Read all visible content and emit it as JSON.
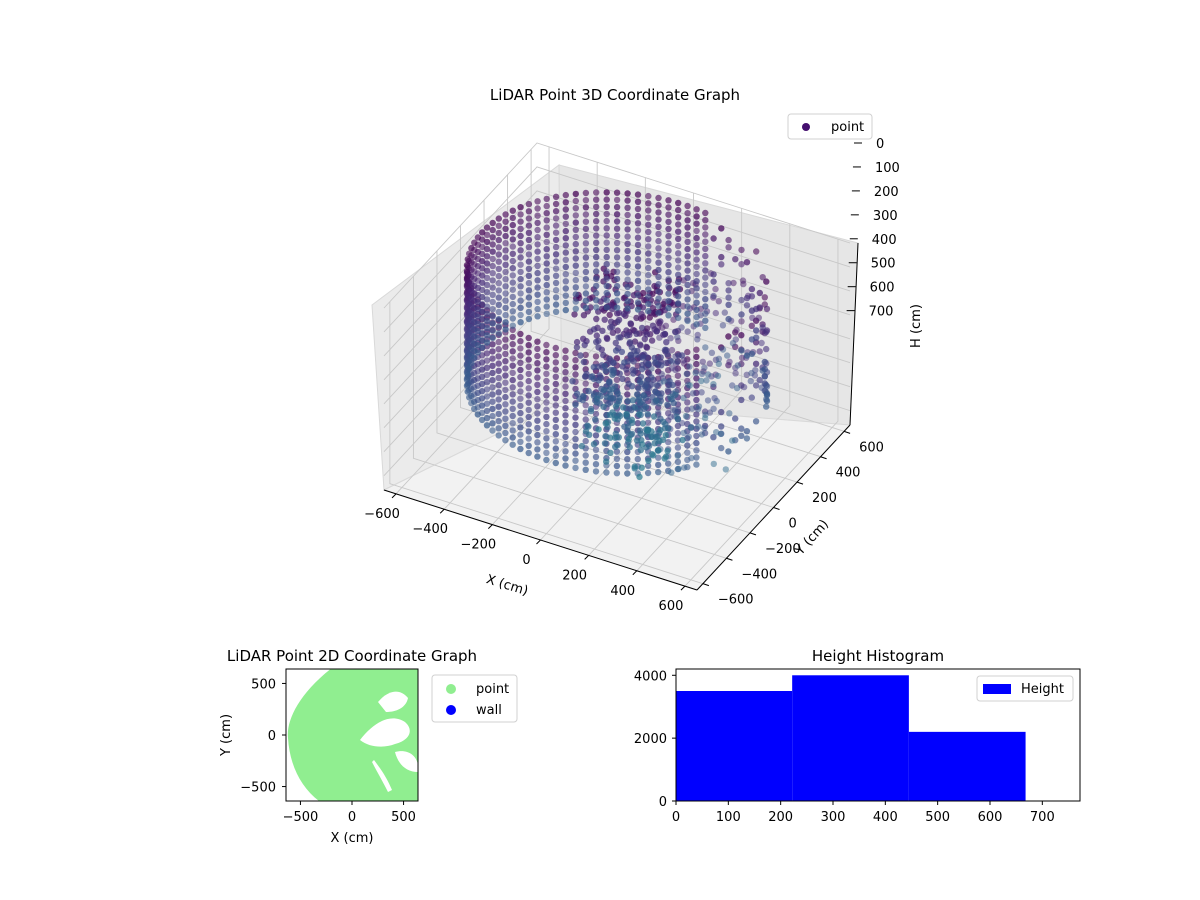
{
  "chart_data": [
    {
      "type": "scatter",
      "projection": "3d",
      "title": "LiDAR Point 3D Coordinate Graph",
      "xlabel": "X (cm)",
      "ylabel": "Y (cm)",
      "zlabel": "H (cm)",
      "xticks": [
        "−600",
        "−400",
        "−200",
        "0",
        "200",
        "400",
        "600"
      ],
      "yticks": [
        "−600",
        "−400",
        "−200",
        "0",
        "200",
        "400",
        "600"
      ],
      "zticks": [
        "0",
        "100",
        "200",
        "300",
        "400",
        "500",
        "600",
        "700"
      ],
      "xlim": [
        -650,
        650
      ],
      "ylim": [
        -650,
        650
      ],
      "zlim": [
        0,
        760
      ],
      "zaxis_inverted": true,
      "grid": true,
      "legend": {
        "placement": "top-right",
        "entries": [
          "point"
        ]
      },
      "series": [
        {
          "name": "point",
          "color": "#440f6e",
          "colormap": "viridis",
          "description_values": {
            "ring_radius": 560,
            "ring_height_range": [
              0,
              480
            ],
            "inner_block": {
              "x_range": [
                -100,
                230
              ],
              "y_range": [
                -200,
                120
              ],
              "z_range": [
                0,
                700
              ]
            }
          }
        }
      ]
    },
    {
      "type": "scatter",
      "title": "LiDAR Point 2D Coordinate Graph",
      "xlabel": "X (cm)",
      "ylabel": "Y (cm)",
      "xticks": [
        "−500",
        "0",
        "500"
      ],
      "yticks": [
        "500",
        "0",
        "−500"
      ],
      "xlim": [
        -640,
        640
      ],
      "ylim": [
        -640,
        640
      ],
      "grid": false,
      "legend": {
        "placement": "outside-right",
        "entries": [
          "point",
          "wall"
        ]
      },
      "series": [
        {
          "name": "point",
          "color": "#90ee90"
        },
        {
          "name": "wall",
          "color": "#0000ff"
        }
      ]
    },
    {
      "type": "bar",
      "title": "Height Histogram",
      "xlabel": "",
      "ylabel": "",
      "xticks": [
        "0",
        "100",
        "200",
        "300",
        "400",
        "500",
        "600",
        "700"
      ],
      "yticks": [
        "0",
        "2000",
        "4000"
      ],
      "xlim": [
        0,
        772
      ],
      "ylim": [
        0,
        4200
      ],
      "bin_edges": [
        0,
        222,
        445,
        668
      ],
      "values": [
        3500,
        4000,
        2200
      ],
      "legend": {
        "placement": "top-right",
        "entries": [
          "Height"
        ]
      },
      "series": [
        {
          "name": "Height",
          "color": "#0000ff",
          "values": [
            3500,
            4000,
            2200
          ]
        }
      ]
    }
  ]
}
